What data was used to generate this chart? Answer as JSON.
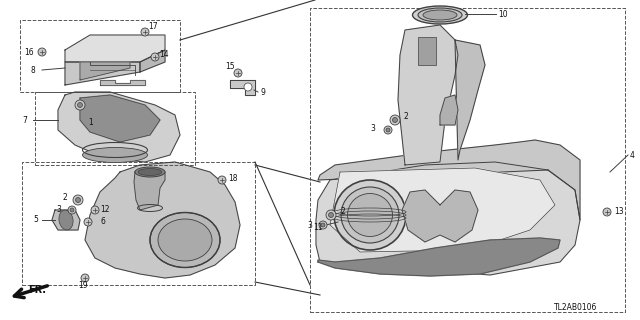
{
  "bg_color": "#ffffff",
  "line_color": "#404040",
  "part_code": "TL2AB0106",
  "fig_w": 6.4,
  "fig_h": 3.2,
  "dpi": 100
}
